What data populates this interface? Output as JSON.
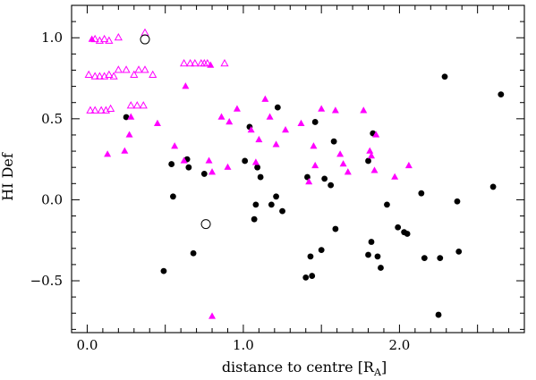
{
  "chart_data": {
    "type": "scatter",
    "title": "",
    "xlabel": "distance to centre [R",
    "xlabel_subscript": "A",
    "xlabel_suffix": "]",
    "ylabel": "HI Def",
    "xlim": [
      -0.1,
      2.8
    ],
    "ylim": [
      -0.82,
      1.2
    ],
    "x_ticks": [
      0.0,
      1.0,
      2.0
    ],
    "x_tick_labels": [
      "0.0",
      "1.0",
      "2.0"
    ],
    "y_ticks": [
      -0.5,
      0.0,
      0.5,
      1.0
    ],
    "y_tick_labels": [
      "−0.5",
      "0.0",
      "0.5",
      "1.0"
    ],
    "grid": false,
    "colors": {
      "magenta": "#ff00ff",
      "black": "#000000"
    },
    "series": [
      {
        "marker": "filled-circle",
        "color": "#000000",
        "points": [
          [
            0.25,
            0.51
          ],
          [
            0.49,
            -0.44
          ],
          [
            0.54,
            0.22
          ],
          [
            0.55,
            0.02
          ],
          [
            0.64,
            0.25
          ],
          [
            0.65,
            0.2
          ],
          [
            0.68,
            -0.33
          ],
          [
            0.75,
            0.16
          ],
          [
            1.01,
            0.24
          ],
          [
            1.04,
            0.45
          ],
          [
            1.07,
            -0.12
          ],
          [
            1.08,
            -0.03
          ],
          [
            1.09,
            0.2
          ],
          [
            1.11,
            0.14
          ],
          [
            1.18,
            -0.03
          ],
          [
            1.21,
            0.02
          ],
          [
            1.22,
            0.57
          ],
          [
            1.25,
            -0.07
          ],
          [
            1.4,
            -0.48
          ],
          [
            1.41,
            0.14
          ],
          [
            1.43,
            -0.35
          ],
          [
            1.44,
            -0.47
          ],
          [
            1.46,
            0.48
          ],
          [
            1.5,
            -0.31
          ],
          [
            1.52,
            0.13
          ],
          [
            1.56,
            0.09
          ],
          [
            1.58,
            0.36
          ],
          [
            1.59,
            -0.18
          ],
          [
            1.8,
            0.24
          ],
          [
            1.8,
            -0.34
          ],
          [
            1.82,
            -0.26
          ],
          [
            1.83,
            0.41
          ],
          [
            1.86,
            -0.35
          ],
          [
            1.88,
            -0.42
          ],
          [
            1.92,
            -0.03
          ],
          [
            1.99,
            -0.17
          ],
          [
            2.03,
            -0.2
          ],
          [
            2.05,
            -0.21
          ],
          [
            2.14,
            0.04
          ],
          [
            2.16,
            -0.36
          ],
          [
            2.25,
            -0.71
          ],
          [
            2.26,
            -0.36
          ],
          [
            2.29,
            0.76
          ],
          [
            2.37,
            -0.01
          ],
          [
            2.38,
            -0.32
          ],
          [
            2.6,
            0.08
          ],
          [
            2.65,
            0.65
          ]
        ]
      },
      {
        "marker": "filled-triangle",
        "color": "#ff00ff",
        "points": [
          [
            0.03,
            0.99
          ],
          [
            0.13,
            0.28
          ],
          [
            0.24,
            0.3
          ],
          [
            0.27,
            0.4
          ],
          [
            0.28,
            0.51
          ],
          [
            0.45,
            0.47
          ],
          [
            0.56,
            0.33
          ],
          [
            0.62,
            0.24
          ],
          [
            0.63,
            0.7
          ],
          [
            0.78,
            0.24
          ],
          [
            0.79,
            0.83
          ],
          [
            0.8,
            0.17
          ],
          [
            0.8,
            -0.72
          ],
          [
            0.86,
            0.51
          ],
          [
            0.9,
            0.2
          ],
          [
            0.91,
            0.48
          ],
          [
            0.96,
            0.56
          ],
          [
            1.05,
            0.43
          ],
          [
            1.08,
            0.23
          ],
          [
            1.1,
            0.37
          ],
          [
            1.14,
            0.62
          ],
          [
            1.17,
            0.51
          ],
          [
            1.21,
            0.34
          ],
          [
            1.27,
            0.43
          ],
          [
            1.37,
            0.47
          ],
          [
            1.42,
            0.11
          ],
          [
            1.45,
            0.33
          ],
          [
            1.46,
            0.21
          ],
          [
            1.5,
            0.56
          ],
          [
            1.59,
            0.55
          ],
          [
            1.62,
            0.28
          ],
          [
            1.64,
            0.22
          ],
          [
            1.67,
            0.17
          ],
          [
            1.77,
            0.55
          ],
          [
            1.81,
            0.3
          ],
          [
            1.82,
            0.27
          ],
          [
            1.84,
            0.18
          ],
          [
            1.85,
            0.4
          ],
          [
            1.97,
            0.14
          ],
          [
            2.06,
            0.21
          ]
        ]
      },
      {
        "marker": "open-triangle",
        "color": "#ff00ff",
        "points": [
          [
            0.05,
            0.99
          ],
          [
            0.08,
            0.98
          ],
          [
            0.11,
            0.99
          ],
          [
            0.14,
            0.98
          ],
          [
            0.2,
            1.0
          ],
          [
            0.37,
            1.03
          ],
          [
            0.01,
            0.77
          ],
          [
            0.05,
            0.76
          ],
          [
            0.08,
            0.76
          ],
          [
            0.11,
            0.76
          ],
          [
            0.14,
            0.77
          ],
          [
            0.17,
            0.76
          ],
          [
            0.2,
            0.8
          ],
          [
            0.25,
            0.8
          ],
          [
            0.3,
            0.77
          ],
          [
            0.33,
            0.8
          ],
          [
            0.37,
            0.8
          ],
          [
            0.42,
            0.77
          ],
          [
            0.02,
            0.55
          ],
          [
            0.05,
            0.55
          ],
          [
            0.09,
            0.55
          ],
          [
            0.12,
            0.55
          ],
          [
            0.15,
            0.56
          ],
          [
            0.28,
            0.58
          ],
          [
            0.32,
            0.58
          ],
          [
            0.36,
            0.58
          ],
          [
            0.62,
            0.84
          ],
          [
            0.66,
            0.84
          ],
          [
            0.69,
            0.84
          ],
          [
            0.73,
            0.84
          ],
          [
            0.75,
            0.84
          ],
          [
            0.77,
            0.84
          ],
          [
            0.88,
            0.84
          ]
        ]
      },
      {
        "marker": "open-circle",
        "color": "#000000",
        "points": [
          [
            0.37,
            0.99
          ],
          [
            0.76,
            -0.15
          ]
        ]
      }
    ]
  }
}
